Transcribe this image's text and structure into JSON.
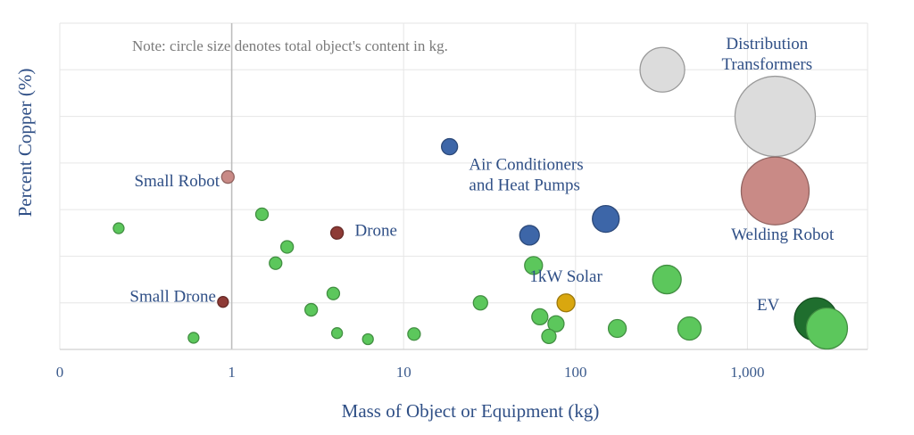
{
  "chart_data": {
    "type": "scatter",
    "title": "",
    "xlabel": "Mass of Object or Equipment (kg)",
    "ylabel": "Percent Copper (%)",
    "x_scale": "log",
    "xlim": [
      0.1,
      5000
    ],
    "ylim": [
      0,
      70
    ],
    "x_ticks": [
      {
        "value": 0.1,
        "label": "0"
      },
      {
        "value": 1,
        "label": "1"
      },
      {
        "value": 10,
        "label": "10"
      },
      {
        "value": 100,
        "label": "100"
      },
      {
        "value": 1000,
        "label": "1,000"
      }
    ],
    "y_grid_step": 10,
    "grid": true,
    "note": "Note: circle size denotes total object's content in kg.",
    "colors": {
      "green": "#5cc75c",
      "dark_green": "#1f6e2e",
      "blue": "#3d66a8",
      "brown": "#8e3b36",
      "pink": "#c98a86",
      "gold": "#d9a70f",
      "gray": "#dcdcdc"
    },
    "points": [
      {
        "x": 0.22,
        "y": 26,
        "r": 6,
        "color": "green"
      },
      {
        "x": 0.6,
        "y": 2.5,
        "r": 6,
        "color": "green"
      },
      {
        "x": 0.89,
        "y": 10.2,
        "r": 6,
        "color": "brown"
      },
      {
        "x": 0.95,
        "y": 37,
        "r": 7,
        "color": "pink"
      },
      {
        "x": 1.5,
        "y": 29,
        "r": 7,
        "color": "green"
      },
      {
        "x": 1.8,
        "y": 18.5,
        "r": 7,
        "color": "green"
      },
      {
        "x": 2.1,
        "y": 22,
        "r": 7,
        "color": "green"
      },
      {
        "x": 2.9,
        "y": 8.5,
        "r": 7,
        "color": "green"
      },
      {
        "x": 3.9,
        "y": 12,
        "r": 7,
        "color": "green"
      },
      {
        "x": 4.1,
        "y": 25,
        "r": 7,
        "color": "brown"
      },
      {
        "x": 4.1,
        "y": 3.5,
        "r": 6,
        "color": "green"
      },
      {
        "x": 6.2,
        "y": 2.2,
        "r": 6,
        "color": "green"
      },
      {
        "x": 11.5,
        "y": 3.3,
        "r": 7,
        "color": "green"
      },
      {
        "x": 18.5,
        "y": 43.5,
        "r": 9,
        "color": "blue"
      },
      {
        "x": 28,
        "y": 10,
        "r": 8,
        "color": "green"
      },
      {
        "x": 54,
        "y": 24.5,
        "r": 11,
        "color": "blue"
      },
      {
        "x": 57,
        "y": 18,
        "r": 10,
        "color": "green"
      },
      {
        "x": 62,
        "y": 7,
        "r": 9,
        "color": "green"
      },
      {
        "x": 70,
        "y": 2.8,
        "r": 8,
        "color": "green"
      },
      {
        "x": 77,
        "y": 5.5,
        "r": 9,
        "color": "green"
      },
      {
        "x": 88,
        "y": 10,
        "r": 10,
        "color": "gold"
      },
      {
        "x": 150,
        "y": 28,
        "r": 15,
        "color": "blue"
      },
      {
        "x": 175,
        "y": 4.5,
        "r": 10,
        "color": "green"
      },
      {
        "x": 320,
        "y": 60,
        "r": 25,
        "color": "gray"
      },
      {
        "x": 340,
        "y": 15,
        "r": 16,
        "color": "green"
      },
      {
        "x": 460,
        "y": 4.5,
        "r": 13,
        "color": "green"
      },
      {
        "x": 1450,
        "y": 50,
        "r": 45,
        "color": "gray"
      },
      {
        "x": 1450,
        "y": 34,
        "r": 38,
        "color": "pink"
      },
      {
        "x": 2900,
        "y": 4.5,
        "r": 23,
        "color": "green"
      },
      {
        "x": 2500,
        "y": 6.5,
        "r": 24,
        "color": "dark_green"
      }
    ],
    "annotations": [
      {
        "id": "distribution-transformers",
        "lines": [
          "Distribution",
          "Transformers"
        ],
        "x": 1300,
        "y": 64.5,
        "anchor": "middle"
      },
      {
        "id": "air-conditioners",
        "lines": [
          "Air Conditioners",
          "and Heat Pumps"
        ],
        "x": 24,
        "y": 38.5,
        "anchor": "start"
      },
      {
        "id": "small-robot",
        "lines": [
          "Small Robot"
        ],
        "x": 0.85,
        "y": 35,
        "anchor": "end"
      },
      {
        "id": "drone",
        "lines": [
          "Drone"
        ],
        "x": 5.2,
        "y": 24.4,
        "anchor": "start"
      },
      {
        "id": "welding-robot",
        "lines": [
          "Welding Robot"
        ],
        "x": 1600,
        "y": 23.5,
        "anchor": "middle"
      },
      {
        "id": "solar",
        "lines": [
          "1kW Solar"
        ],
        "x": 88,
        "y": 14.5,
        "anchor": "middle"
      },
      {
        "id": "small-drone",
        "lines": [
          "Small Drone"
        ],
        "x": 0.81,
        "y": 10.2,
        "anchor": "end"
      },
      {
        "id": "ev",
        "lines": [
          "EV"
        ],
        "x": 1320,
        "y": 8.4,
        "anchor": "middle"
      }
    ]
  }
}
